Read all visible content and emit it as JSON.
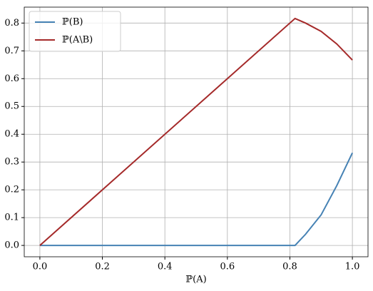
{
  "chart_data": {
    "type": "line",
    "x_label": "ℙ(A)",
    "x": [
      0,
      0.8165,
      0.85,
      0.9,
      0.95,
      1.0
    ],
    "series": [
      {
        "name": "ℙ(B)",
        "color": "#4682b4",
        "values": [
          0,
          0,
          0.04,
          0.11,
          0.215,
          0.333
        ]
      },
      {
        "name": "ℙ(A\\B)",
        "color": "#a52a2a",
        "values": [
          0,
          0.8165,
          0.8,
          0.77,
          0.725,
          0.667
        ]
      }
    ],
    "xlim": [
      -0.05,
      1.05
    ],
    "ylim": [
      -0.0408,
      0.8573
    ],
    "xticks": [
      {
        "value": 0,
        "label": "0.0"
      },
      {
        "value": 0.2,
        "label": "0.2"
      },
      {
        "value": 0.4,
        "label": "0.4"
      },
      {
        "value": 0.6,
        "label": "0.6"
      },
      {
        "value": 0.8,
        "label": "0.8"
      },
      {
        "value": 1.0,
        "label": "1.0"
      }
    ],
    "yticks": [
      {
        "value": 0,
        "label": "0.0"
      },
      {
        "value": 0.1,
        "label": "0.1"
      },
      {
        "value": 0.2,
        "label": "0.2"
      },
      {
        "value": 0.3,
        "label": "0.3"
      },
      {
        "value": 0.4,
        "label": "0.4"
      },
      {
        "value": 0.5,
        "label": "0.5"
      },
      {
        "value": 0.6,
        "label": "0.6"
      },
      {
        "value": 0.7,
        "label": "0.7"
      },
      {
        "value": 0.8,
        "label": "0.8"
      }
    ],
    "grid": true,
    "legend": "upper-left"
  }
}
